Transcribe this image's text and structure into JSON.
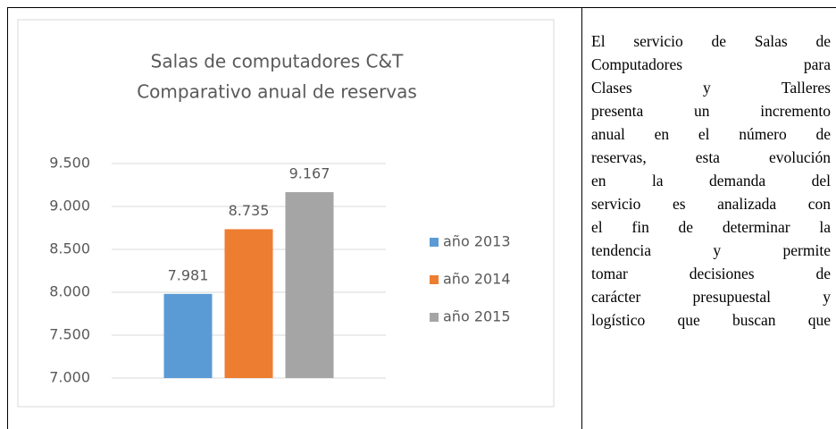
{
  "chart_data": {
    "type": "bar",
    "title": [
      "Salas de computadores C&T",
      "Comparativo anual de reservas"
    ],
    "categories": [
      null
    ],
    "series": [
      {
        "name": "año 2013",
        "color": "#5b9bd5",
        "values": [
          7981
        ],
        "value_labels": [
          "7.981"
        ]
      },
      {
        "name": "año 2014",
        "color": "#ed7d31",
        "values": [
          8735
        ],
        "value_labels": [
          "8.735"
        ]
      },
      {
        "name": "año 2015",
        "color": "#a5a5a5",
        "values": [
          9167
        ],
        "value_labels": [
          "9.167"
        ]
      }
    ],
    "ylim": [
      7000,
      9500
    ],
    "yticks": [
      {
        "value": 7000,
        "label": "7.000"
      },
      {
        "value": 7500,
        "label": "7.500"
      },
      {
        "value": 8000,
        "label": "8.000"
      },
      {
        "value": 8500,
        "label": "8.500"
      },
      {
        "value": 9000,
        "label": "9.000"
      },
      {
        "value": 9500,
        "label": "9.500"
      }
    ],
    "grid": true,
    "legend": "right"
  },
  "text": {
    "lines": [
      "El servicio de Salas de",
      "Computadores para",
      "Clases y Talleres",
      "presenta un incremento",
      "anual en el número de",
      "reservas, esta evolución",
      "en la demanda del",
      "servicio es analizada con",
      "el fin de determinar la",
      "tendencia y permite",
      "tomar decisiones de",
      "carácter presupuestal y",
      "logístico que buscan que"
    ]
  }
}
